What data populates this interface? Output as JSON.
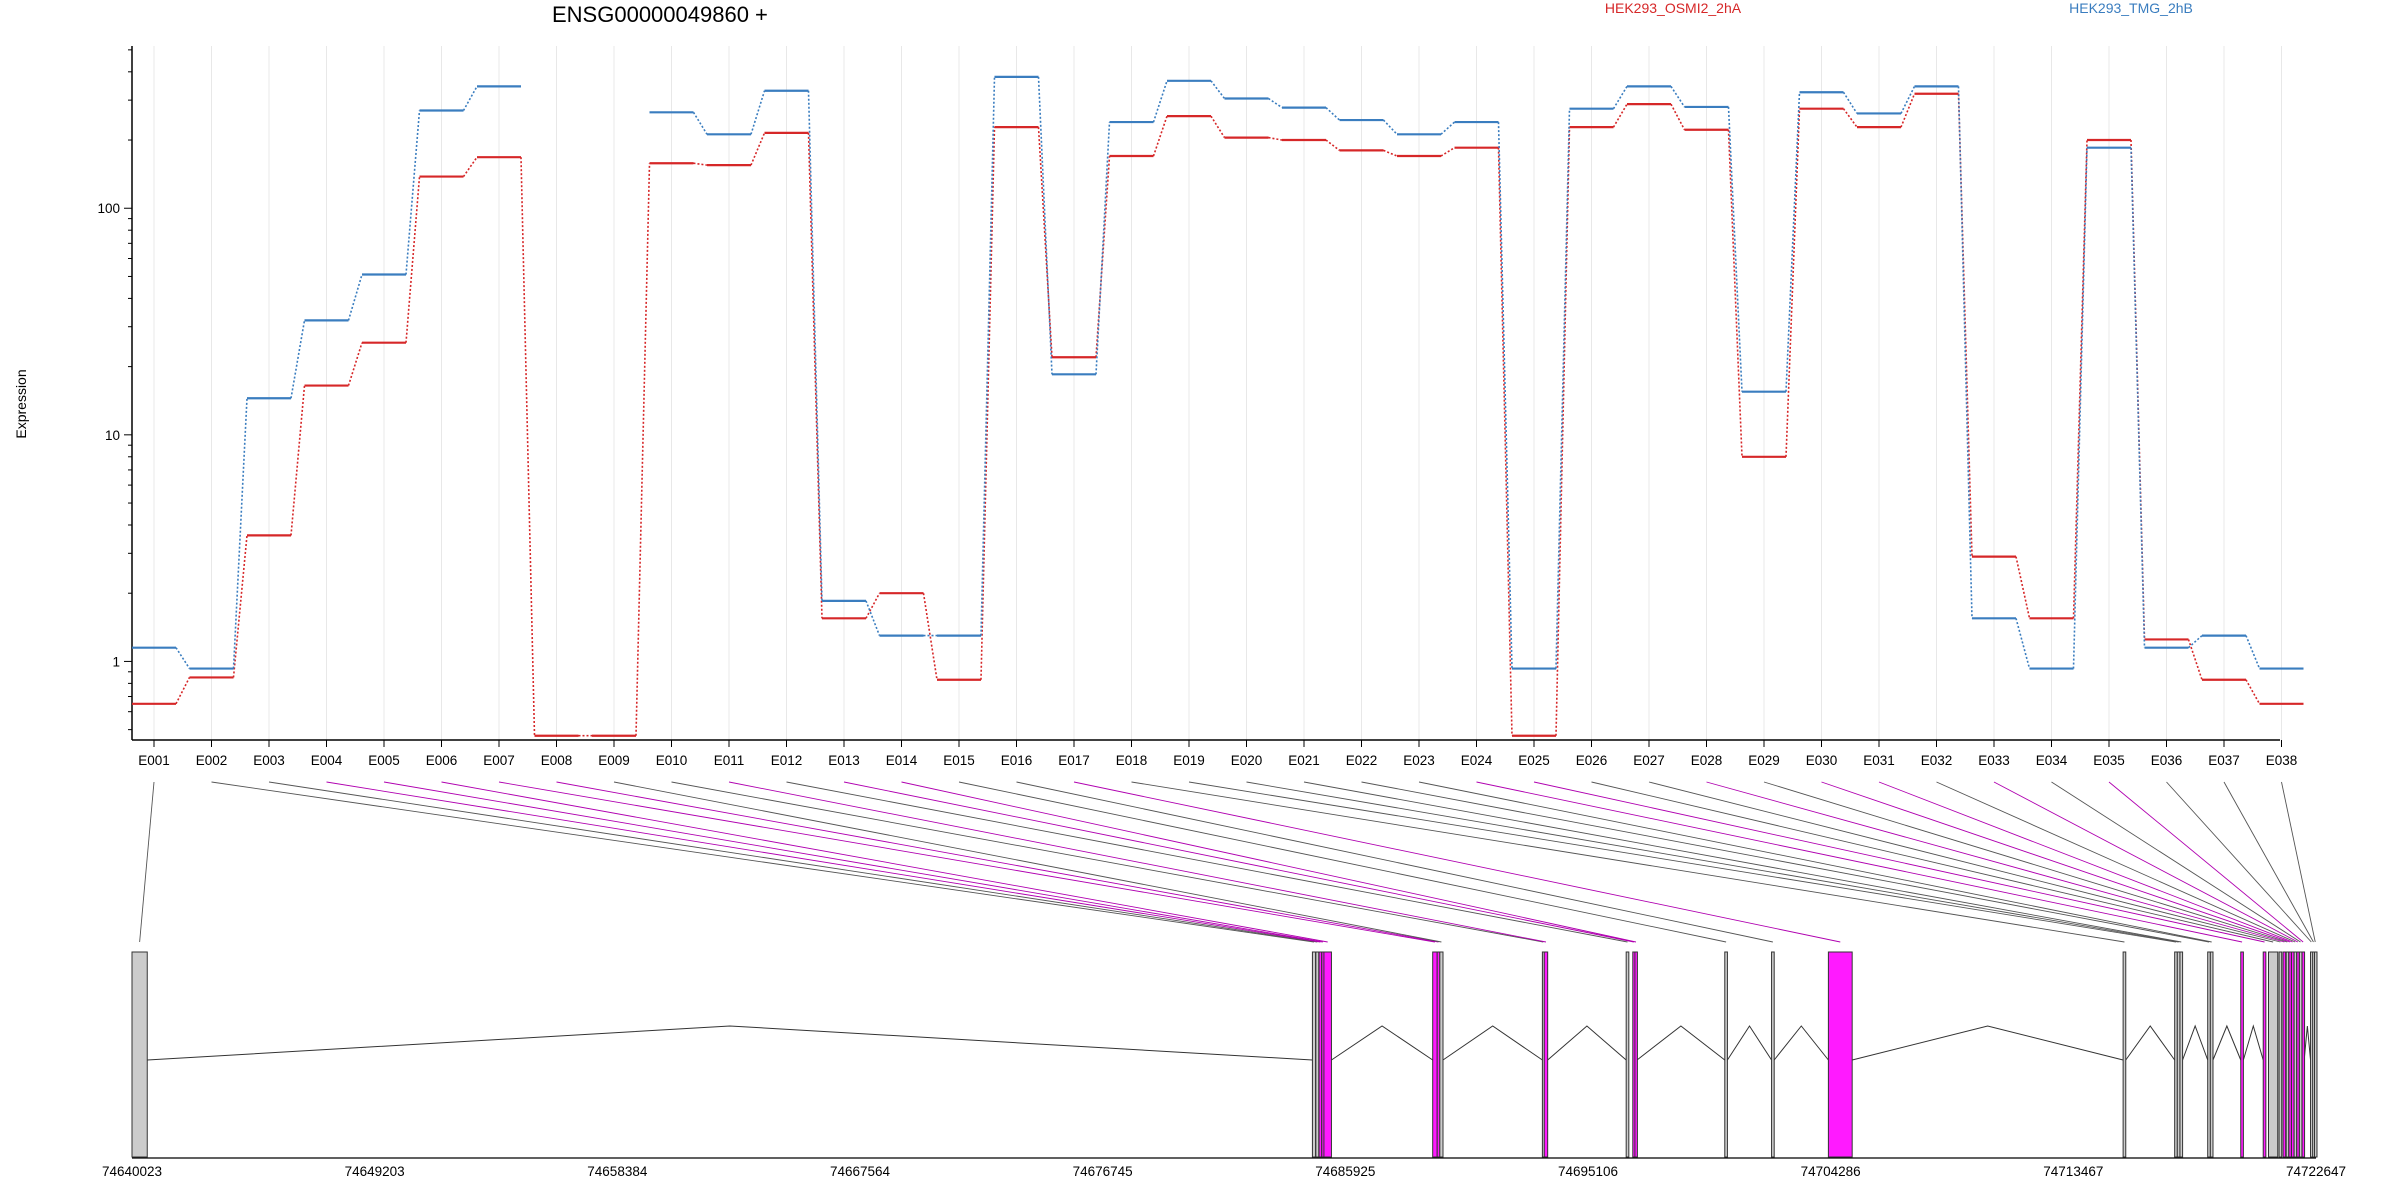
{
  "chart_data": {
    "type": "line",
    "title": "ENSG00000049860 +",
    "ylabel": "Expression",
    "xlabel": "",
    "yscale": "log",
    "ylim": [
      0.45,
      520
    ],
    "grid": "vertical",
    "legend_placement": "top",
    "y_ticks": [
      {
        "value": 1,
        "label": "1"
      },
      {
        "value": 10,
        "label": "10"
      },
      {
        "value": 100,
        "label": "100"
      }
    ],
    "categories": [
      "E001",
      "E002",
      "E003",
      "E004",
      "E005",
      "E006",
      "E007",
      "E008",
      "E009",
      "E010",
      "E011",
      "E012",
      "E013",
      "E014",
      "E015",
      "E016",
      "E017",
      "E018",
      "E019",
      "E020",
      "E021",
      "E022",
      "E023",
      "E024",
      "E025",
      "E026",
      "E027",
      "E028",
      "E029",
      "E030",
      "E031",
      "E032",
      "E033",
      "E034",
      "E035",
      "E036",
      "E037",
      "E038"
    ],
    "series": [
      {
        "name": "HEK293_OSMI2_2hA",
        "color": "#d62728",
        "values": [
          0.65,
          0.85,
          3.6,
          16.5,
          25.5,
          138,
          168,
          0.47,
          0.47,
          158,
          155,
          215,
          1.55,
          2.0,
          0.83,
          228,
          22,
          170,
          255,
          205,
          200,
          180,
          170,
          185,
          0.47,
          228,
          288,
          222,
          8.0,
          275,
          228,
          320,
          2.9,
          1.55,
          200,
          1.25,
          0.83,
          0.65
        ]
      },
      {
        "name": "HEK293_TMG_2hB",
        "color": "#3a7dbf",
        "values": [
          1.15,
          0.93,
          14.5,
          32,
          51,
          270,
          345,
          null,
          null,
          265,
          212,
          330,
          1.85,
          1.3,
          1.3,
          380,
          18.5,
          240,
          365,
          305,
          278,
          245,
          212,
          240,
          0.93,
          275,
          345,
          280,
          15.5,
          325,
          262,
          345,
          1.55,
          0.93,
          185,
          1.15,
          1.3,
          0.93
        ]
      }
    ],
    "gene_model": {
      "coord_ticks": [
        "74640023",
        "74649203",
        "74658384",
        "74667564",
        "74676745",
        "74685925",
        "74695106",
        "74704286",
        "74713467",
        "74722647"
      ],
      "coord_range": [
        74640023,
        74722647
      ],
      "highlight_color": "#ff1aff",
      "neutral_color": "#cccccc",
      "exons": [
        {
          "id": "E001",
          "start": 74640023,
          "end": 74640600,
          "highlight": false
        },
        {
          "id": "E002",
          "start": 74684680,
          "end": 74684800,
          "highlight": false
        },
        {
          "id": "E003",
          "start": 74684810,
          "end": 74684920,
          "highlight": false
        },
        {
          "id": "E004",
          "start": 74684930,
          "end": 74685030,
          "highlight": true
        },
        {
          "id": "E005",
          "start": 74685035,
          "end": 74685110,
          "highlight": true
        },
        {
          "id": "E006",
          "start": 74685115,
          "end": 74685400,
          "highlight": true
        },
        {
          "id": "E007",
          "start": 74689230,
          "end": 74689400,
          "highlight": true
        },
        {
          "id": "E008",
          "start": 74689400,
          "end": 74689500,
          "highlight": true
        },
        {
          "id": "E009",
          "start": 74689500,
          "end": 74689620,
          "highlight": false
        },
        {
          "id": "E010",
          "start": 74693380,
          "end": 74693450,
          "highlight": false
        },
        {
          "id": "E011",
          "start": 74693450,
          "end": 74693580,
          "highlight": true
        },
        {
          "id": "E012",
          "start": 74696550,
          "end": 74696650,
          "highlight": false
        },
        {
          "id": "E013",
          "start": 74696800,
          "end": 74696880,
          "highlight": true
        },
        {
          "id": "E014",
          "start": 74696880,
          "end": 74696960,
          "highlight": true
        },
        {
          "id": "E015",
          "start": 74700280,
          "end": 74700380,
          "highlight": false
        },
        {
          "id": "E016",
          "start": 74702050,
          "end": 74702150,
          "highlight": false
        },
        {
          "id": "E017",
          "start": 74704200,
          "end": 74705100,
          "highlight": true
        },
        {
          "id": "E018",
          "start": 74715350,
          "end": 74715450,
          "highlight": false
        },
        {
          "id": "E019",
          "start": 74717300,
          "end": 74717400,
          "highlight": false
        },
        {
          "id": "E020",
          "start": 74717400,
          "end": 74717500,
          "highlight": false
        },
        {
          "id": "E021",
          "start": 74717500,
          "end": 74717600,
          "highlight": false
        },
        {
          "id": "E022",
          "start": 74718550,
          "end": 74718650,
          "highlight": false
        },
        {
          "id": "E023",
          "start": 74718650,
          "end": 74718750,
          "highlight": false
        },
        {
          "id": "E024",
          "start": 74719800,
          "end": 74719900,
          "highlight": true
        },
        {
          "id": "E025",
          "start": 74720650,
          "end": 74720750,
          "highlight": true
        },
        {
          "id": "E026",
          "start": 74720850,
          "end": 74721200,
          "highlight": false
        },
        {
          "id": "E027",
          "start": 74721250,
          "end": 74721350,
          "highlight": false
        },
        {
          "id": "E028",
          "start": 74721400,
          "end": 74721500,
          "highlight": true
        },
        {
          "id": "E029",
          "start": 74721520,
          "end": 74721600,
          "highlight": false
        },
        {
          "id": "E030",
          "start": 74721620,
          "end": 74721700,
          "highlight": true
        },
        {
          "id": "E031",
          "start": 74721720,
          "end": 74721800,
          "highlight": true
        },
        {
          "id": "E032",
          "start": 74721820,
          "end": 74721900,
          "highlight": false
        },
        {
          "id": "E033",
          "start": 74721920,
          "end": 74722000,
          "highlight": true
        },
        {
          "id": "E034",
          "start": 74722020,
          "end": 74722100,
          "highlight": false
        },
        {
          "id": "E035",
          "start": 74722120,
          "end": 74722200,
          "highlight": true
        },
        {
          "id": "E036",
          "start": 74722440,
          "end": 74722500,
          "highlight": false
        },
        {
          "id": "E037",
          "start": 74722520,
          "end": 74722580,
          "highlight": false
        },
        {
          "id": "E038",
          "start": 74722590,
          "end": 74722647,
          "highlight": false
        }
      ]
    }
  }
}
